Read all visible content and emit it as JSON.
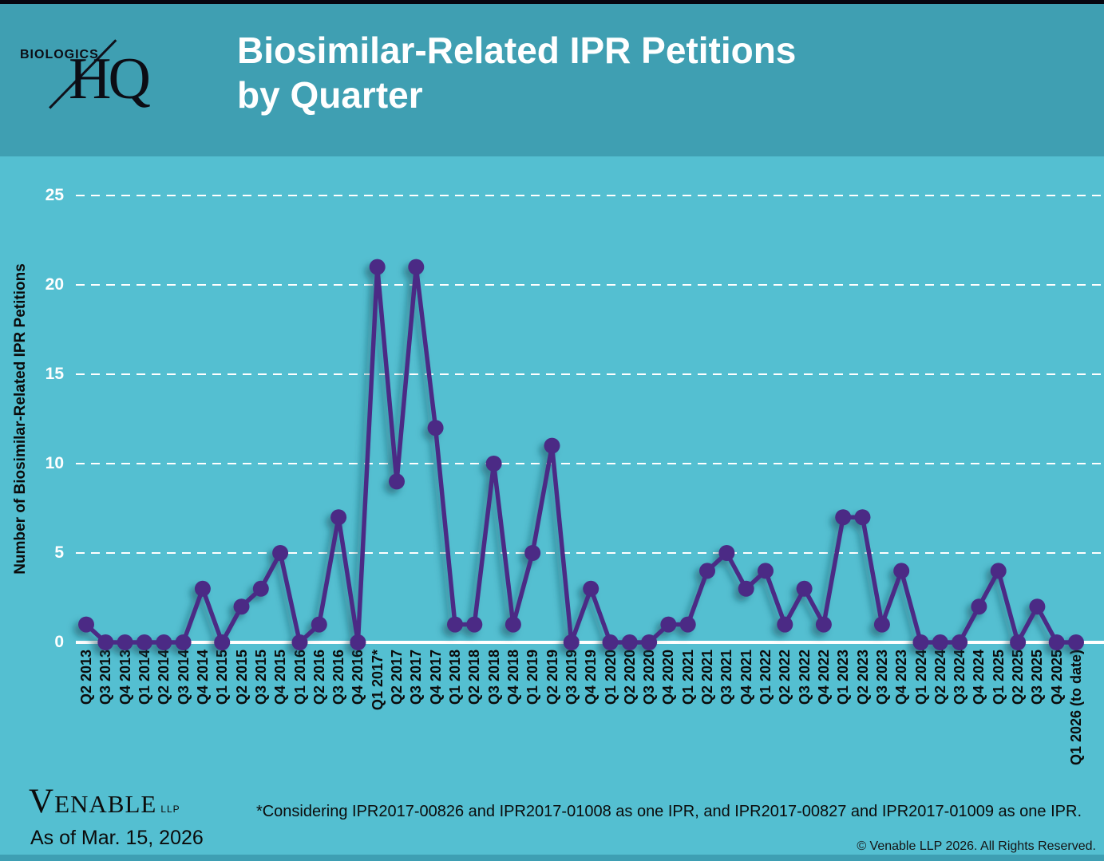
{
  "header": {
    "logo_top": "BIOLOGICS",
    "logo_bottom": "HQ",
    "title_lines": [
      "Biosimilar-Related IPR Petitions",
      "by Quarter"
    ]
  },
  "chart_data": {
    "type": "line",
    "title": "Biosimilar-Related IPR Petitions by Quarter",
    "xlabel": "",
    "ylabel": "Number of Biosimilar-Related IPR Petitions",
    "ylim": [
      0,
      25
    ],
    "yticks": [
      0,
      5,
      10,
      15,
      20,
      25
    ],
    "grid": "horizontal-dashed-white",
    "legend": "none",
    "line_color": "#4b2b85",
    "marker_color": "#4b2b85",
    "marker_style": "circle",
    "categories": [
      "Q2 2013",
      "Q3 2013",
      "Q4 2013",
      "Q1 2014",
      "Q2 2014",
      "Q3 2014",
      "Q4 2014",
      "Q1 2015",
      "Q2 2015",
      "Q3 2015",
      "Q4 2015",
      "Q1 2016",
      "Q2 2016",
      "Q3 2016",
      "Q4 2016",
      "Q1 2017*",
      "Q2 2017",
      "Q3 2017",
      "Q4 2017",
      "Q1 2018",
      "Q2 2018",
      "Q3 2018",
      "Q4 2018",
      "Q1 2019",
      "Q2 2019",
      "Q3 2019",
      "Q4 2019",
      "Q1 2020",
      "Q2 2020",
      "Q3 2020",
      "Q4 2020",
      "Q1 2021",
      "Q2 2021",
      "Q3 2021",
      "Q4 2021",
      "Q1 2022",
      "Q2 2022",
      "Q3 2022",
      "Q4 2022",
      "Q1 2023",
      "Q2 2023",
      "Q3 2023",
      "Q4 2023",
      "Q1 2024",
      "Q2 2024",
      "Q3 2024",
      "Q4 2024",
      "Q1 2025",
      "Q2 2025",
      "Q3 2025",
      "Q4 2025",
      "Q1 2026 (to date)"
    ],
    "values": [
      1,
      0,
      0,
      0,
      0,
      0,
      3,
      0,
      2,
      3,
      5,
      0,
      1,
      7,
      0,
      21,
      9,
      21,
      12,
      1,
      1,
      10,
      1,
      5,
      11,
      0,
      3,
      0,
      0,
      0,
      1,
      1,
      4,
      5,
      3,
      4,
      1,
      3,
      1,
      7,
      7,
      1,
      4,
      0,
      0,
      0,
      2,
      4,
      0,
      2,
      0,
      0
    ]
  },
  "footer": {
    "brand": "VENABLE",
    "brand_suffix": "LLP",
    "as_of": "As of Mar. 15, 2026",
    "footnote": "*Considering IPR2017-00826 and IPR2017-01008 as one IPR, and IPR2017-00827 and IPR2017-01009 as one IPR.",
    "copyright": "© Venable LLP 2026. All Rights Reserved."
  },
  "colors": {
    "background": "#54bfd1",
    "header_band": "#3f9fb2",
    "top_bar": "#06060f",
    "bottom_bar": "#3e9fb3",
    "line": "#4b2b85",
    "gridline": "#ffffff",
    "title_text": "#ffffff",
    "axis_text": "#0b0b0b"
  }
}
